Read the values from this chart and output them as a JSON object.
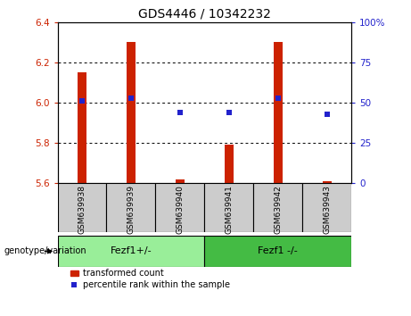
{
  "title": "GDS4446 / 10342232",
  "samples": [
    "GSM639938",
    "GSM639939",
    "GSM639940",
    "GSM639941",
    "GSM639942",
    "GSM639943"
  ],
  "red_values": [
    6.15,
    6.3,
    5.62,
    5.79,
    6.3,
    5.61
  ],
  "blue_percentiles": [
    51,
    53,
    44,
    44,
    53,
    43
  ],
  "ylim_left": [
    5.6,
    6.4
  ],
  "ylim_right": [
    0,
    100
  ],
  "yticks_left": [
    5.6,
    5.8,
    6.0,
    6.2,
    6.4
  ],
  "yticks_right": [
    0,
    25,
    50,
    75,
    100
  ],
  "ytick_labels_right": [
    "0",
    "25",
    "50",
    "75",
    "100%"
  ],
  "grid_lines": [
    6.2,
    6.0,
    5.8
  ],
  "group1_label": "Fezf1+/-",
  "group2_label": "Fezf1 -/-",
  "group1_indices": [
    0,
    1,
    2
  ],
  "group2_indices": [
    3,
    4,
    5
  ],
  "legend_red": "transformed count",
  "legend_blue": "percentile rank within the sample",
  "genotype_label": "genotype/variation",
  "bar_color": "#cc2200",
  "point_color": "#2222cc",
  "group1_color": "#99ee99",
  "group2_color": "#44bb44",
  "sample_box_color": "#cccccc",
  "tick_label_color_left": "#cc2200",
  "tick_label_color_right": "#2222cc",
  "bar_width": 0.18,
  "base_value": 5.6
}
